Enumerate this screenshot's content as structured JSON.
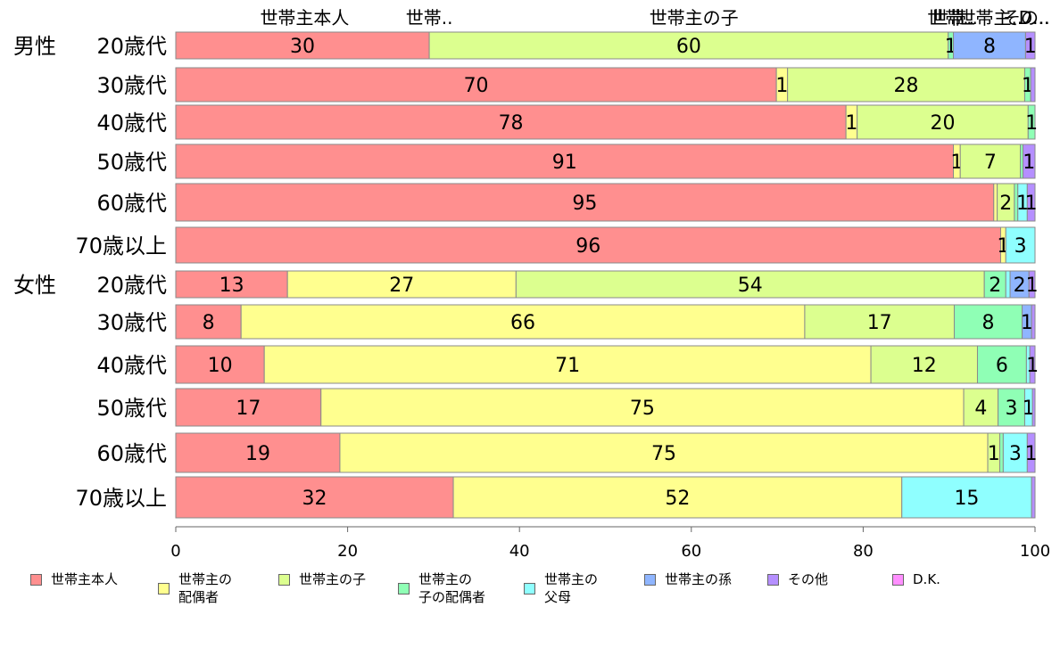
{
  "chart_data": {
    "type": "bar",
    "orientation": "horizontal-stacked-100",
    "xlim": [
      0,
      100
    ],
    "xticks": [
      "0",
      "20",
      "40",
      "60",
      "80",
      "100"
    ],
    "grid": false,
    "legend_position": "bottom",
    "series": [
      {
        "name": "世帯主本人",
        "color": "#ff8f8f"
      },
      {
        "name": "世帯主の\n配偶者",
        "color": "#ffff8f"
      },
      {
        "name": "世帯主の子",
        "color": "#dcff8f"
      },
      {
        "name": "世帯主の\n子の配偶者",
        "color": "#8fffb5"
      },
      {
        "name": "世帯主の\n父母",
        "color": "#8fffff"
      },
      {
        "name": "世帯主の孫",
        "color": "#8fb5ff"
      },
      {
        "name": "その他",
        "color": "#b58fff"
      },
      {
        "name": "D.K.",
        "color": "#ff8fff"
      }
    ],
    "top_labels": [
      {
        "text": "世帯主本人",
        "x": 15
      },
      {
        "text": "世帯..",
        "x": 29.5
      },
      {
        "text": "世帯主の子",
        "x": 60.3
      },
      {
        "text": "世帯..",
        "x": 90.2
      },
      {
        "text": "世帯..",
        "x": 90.6
      },
      {
        "text": "世帯主..",
        "x": 94.8
      },
      {
        "text": "その..",
        "x": 99.0
      },
      {
        "text": "D...",
        "x": 99.9
      }
    ],
    "rows": [
      {
        "group": "男性",
        "label": "20歳代",
        "values": [
          29.5,
          0,
          60.4,
          0.6,
          0,
          8.4,
          1.1,
          0
        ],
        "labels": [
          "30",
          "",
          "60",
          "1",
          "",
          "8",
          "1",
          ""
        ]
      },
      {
        "group": "",
        "label": "30歳代",
        "values": [
          69.9,
          1.3,
          27.6,
          0.7,
          0,
          0,
          0.5,
          0
        ],
        "labels": [
          "70",
          "1",
          "28",
          "1",
          "",
          "",
          "",
          ""
        ]
      },
      {
        "group": "",
        "label": "40歳代",
        "values": [
          78.0,
          1.3,
          19.9,
          0.8,
          0,
          0,
          0,
          0
        ],
        "labels": [
          "78",
          "1",
          "20",
          "1",
          "",
          "",
          "",
          ""
        ]
      },
      {
        "group": "",
        "label": "50歳代",
        "values": [
          90.5,
          0.8,
          7.0,
          0.3,
          0,
          0,
          1.4,
          0
        ],
        "labels": [
          "91",
          "1",
          "7",
          "",
          "",
          "",
          "1",
          ""
        ]
      },
      {
        "group": "",
        "label": "60歳代",
        "values": [
          95.2,
          0.4,
          2.0,
          0.4,
          1.1,
          0,
          0.9,
          0
        ],
        "labels": [
          "95",
          "",
          "2",
          "",
          "1",
          "",
          "1",
          ""
        ]
      },
      {
        "group": "",
        "label": "70歳以上",
        "values": [
          96.0,
          0.6,
          0,
          0,
          3.4,
          0,
          0,
          0
        ],
        "labels": [
          "96",
          "1",
          "",
          "",
          "3",
          "",
          "",
          ""
        ]
      },
      {
        "group": "女性",
        "label": "20歳代",
        "values": [
          13.0,
          26.6,
          54.5,
          2.5,
          0.5,
          2.2,
          0.7,
          0
        ],
        "labels": [
          "13",
          "27",
          "54",
          "2",
          "",
          "2",
          "1",
          ""
        ]
      },
      {
        "group": "",
        "label": "30歳代",
        "values": [
          7.6,
          65.6,
          17.4,
          7.9,
          0,
          1.1,
          0.4,
          0
        ],
        "labels": [
          "8",
          "66",
          "17",
          "8",
          "",
          "1",
          "",
          ""
        ]
      },
      {
        "group": "",
        "label": "40歳代",
        "values": [
          10.3,
          70.6,
          12.4,
          5.7,
          0.4,
          0,
          0.6,
          0
        ],
        "labels": [
          "10",
          "71",
          "12",
          "6",
          "",
          "",
          "1",
          ""
        ]
      },
      {
        "group": "",
        "label": "50歳代",
        "values": [
          16.9,
          74.8,
          4.0,
          3.1,
          0.9,
          0,
          0.3,
          0
        ],
        "labels": [
          "17",
          "75",
          "4",
          "3",
          "1",
          "",
          "",
          ""
        ]
      },
      {
        "group": "",
        "label": "60歳代",
        "values": [
          19.1,
          75.4,
          1.4,
          0.4,
          2.8,
          0,
          0.9,
          0
        ],
        "labels": [
          "19",
          "75",
          "1",
          "",
          "3",
          "",
          "1",
          ""
        ]
      },
      {
        "group": "",
        "label": "70歳以上",
        "values": [
          32.3,
          52.2,
          0,
          0,
          15.1,
          0,
          0.4,
          0
        ],
        "labels": [
          "32",
          "52",
          "",
          "",
          "15",
          "",
          "",
          ""
        ]
      }
    ]
  }
}
